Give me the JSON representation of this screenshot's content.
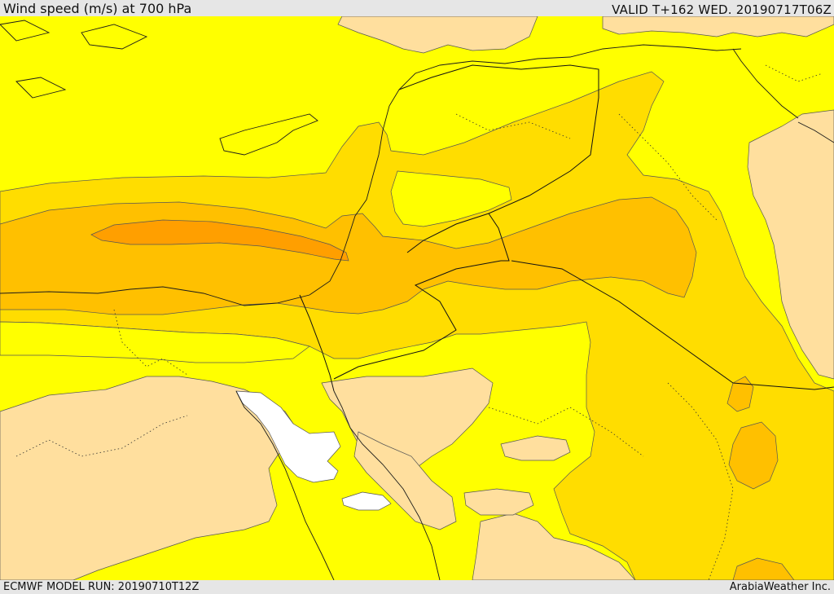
{
  "header": {
    "title": "Wind speed (m/s) at 700 hPa",
    "valid": "VALID T+162 WED. 20190717T06Z"
  },
  "footer": {
    "model_run": "ECMWF MODEL RUN: 20190710T12Z",
    "credit": "ArabiaWeather Inc."
  },
  "colors": {
    "band_low": "#ffdf9e",
    "band_base": "#ffff00",
    "band_mid": "#ffdd00",
    "band_high": "#ffc000",
    "band_top": "#ff9f00",
    "missing": "#ffffff",
    "coast": "#1a1a1a",
    "border": "#111111"
  }
}
